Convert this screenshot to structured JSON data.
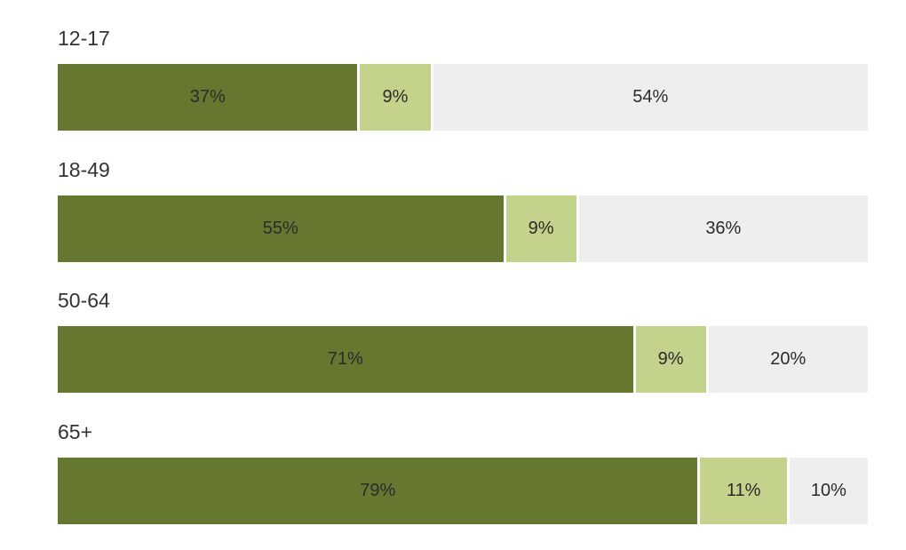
{
  "chart_data": {
    "type": "bar",
    "orientation": "horizontal",
    "stacked": true,
    "percent_stacked": true,
    "categories": [
      "12-17",
      "18-49",
      "50-64",
      "65+"
    ],
    "series": [
      {
        "color": "#66772f",
        "values": [
          37,
          55,
          71,
          79
        ],
        "labels": [
          "37%",
          "55%",
          "71%",
          "79%"
        ]
      },
      {
        "color": "#c3d38b",
        "values": [
          9,
          9,
          9,
          11
        ],
        "labels": [
          "9%",
          "9%",
          "9%",
          "11%"
        ]
      },
      {
        "color": "#eeeeee",
        "values": [
          54,
          36,
          20,
          10
        ],
        "labels": [
          "54%",
          "36%",
          "20%",
          "10%"
        ]
      }
    ],
    "title": "",
    "xlabel": "",
    "ylabel": "",
    "xlim": [
      0,
      100
    ],
    "grid": false,
    "legend": "none"
  }
}
